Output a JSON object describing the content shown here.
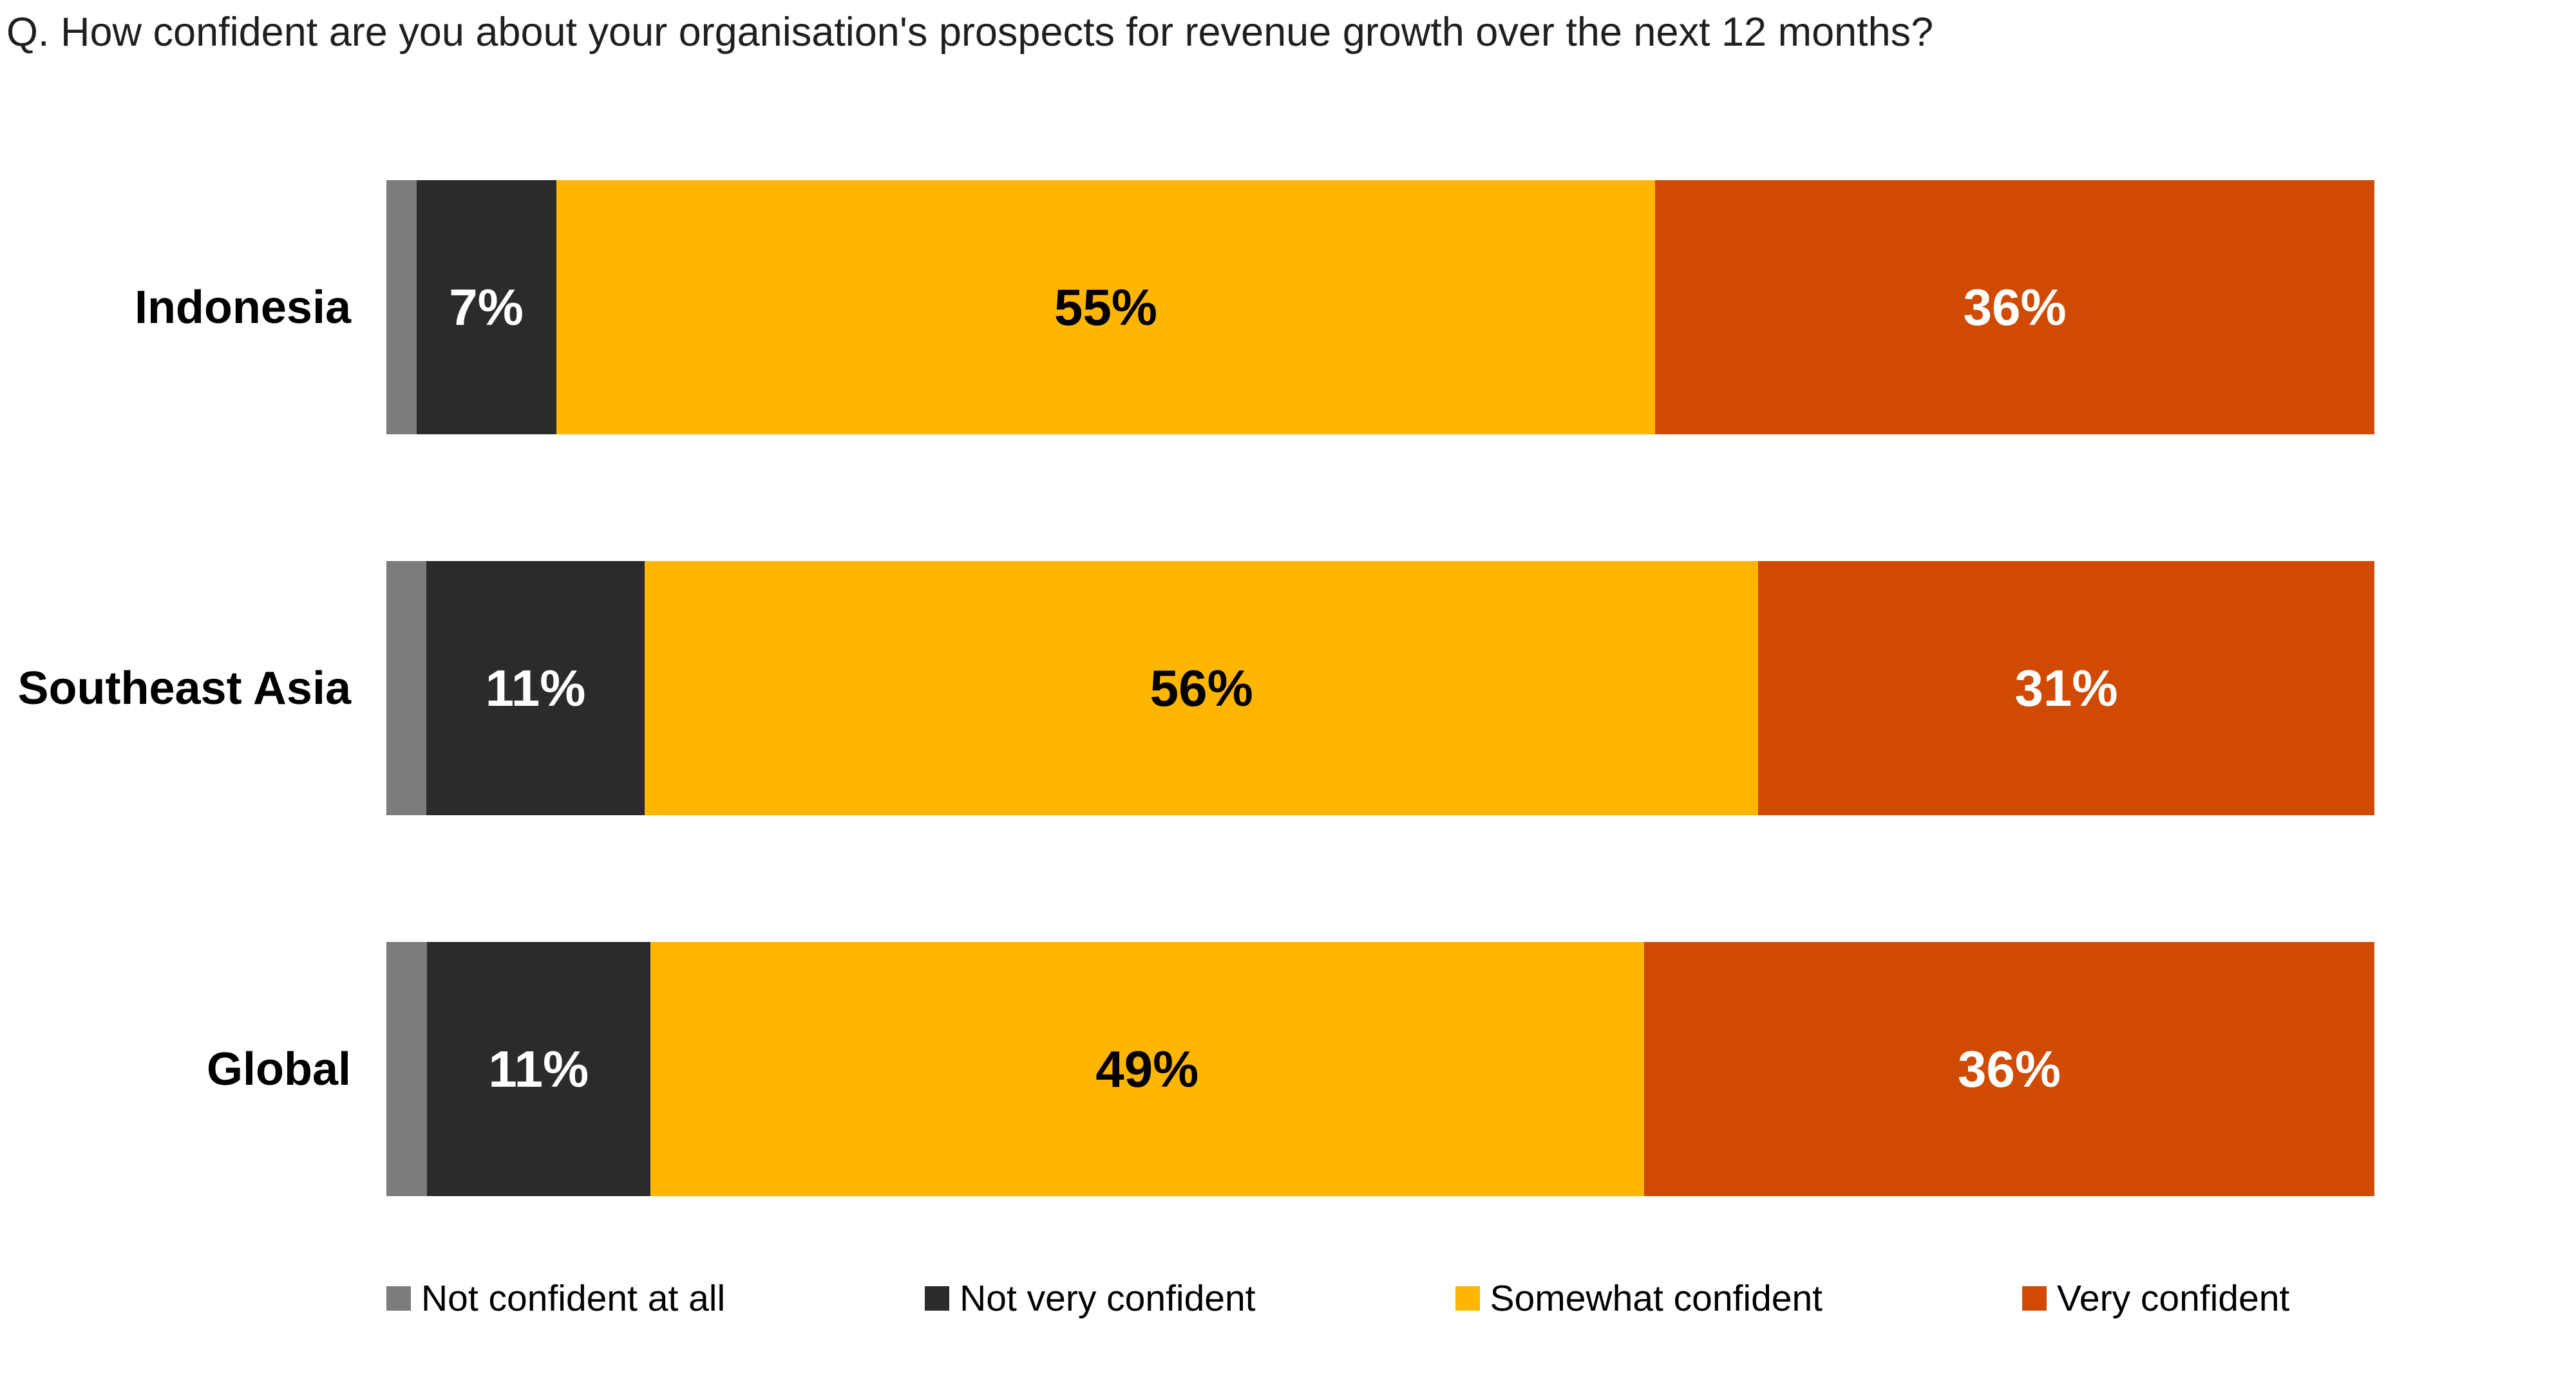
{
  "title": "Q. How confident are you about your organisation's prospects for revenue growth over the next 12 months?",
  "chart_data": {
    "type": "bar",
    "orientation": "horizontal",
    "stacked": true,
    "value_format": "percent",
    "title": "Q. How confident are you about your organisation's prospects for revenue growth over the next 12 months?",
    "categories": [
      "Indonesia",
      "Southeast Asia",
      "Global"
    ],
    "series": [
      {
        "name": "Not confident at all",
        "color": "#7C7C7C",
        "label_color": "#FFFFFF",
        "values": [
          1.5,
          2,
          2
        ],
        "labels": [
          "",
          "",
          ""
        ],
        "values_estimated_from_width": true
      },
      {
        "name": "Not very confident",
        "color": "#2B2B2B",
        "label_color": "#FFFFFF",
        "values": [
          7,
          11,
          11
        ],
        "labels": [
          "7%",
          "11%",
          "11%"
        ]
      },
      {
        "name": "Somewhat confident",
        "color": "#FFB600",
        "label_color": "#000000",
        "values": [
          55,
          56,
          49
        ],
        "labels": [
          "55%",
          "56%",
          "49%"
        ]
      },
      {
        "name": "Very confident",
        "color": "#D04A02",
        "label_color": "#FFFFFF",
        "values": [
          36,
          31,
          36
        ],
        "labels": [
          "36%",
          "31%",
          "36%"
        ]
      }
    ],
    "legend_position": "bottom",
    "grid": false,
    "axes_shown": false
  }
}
